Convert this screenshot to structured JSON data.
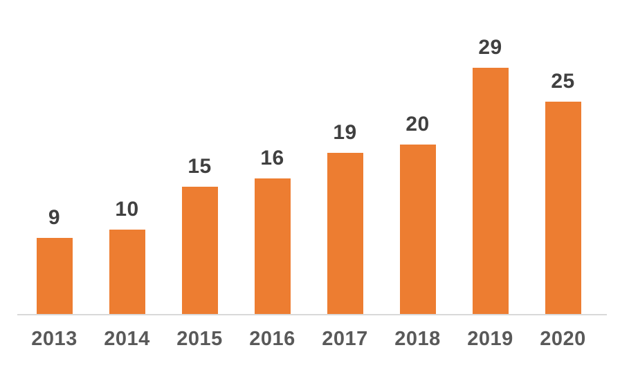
{
  "chart_data": {
    "type": "bar",
    "categories": [
      "2013",
      "2014",
      "2015",
      "2016",
      "2017",
      "2018",
      "2019",
      "2020"
    ],
    "values": [
      9,
      10,
      15,
      16,
      19,
      20,
      29,
      25
    ],
    "title": "",
    "xlabel": "",
    "ylabel": "",
    "ylim": [
      0,
      30
    ],
    "grid": false,
    "legend_position": "none",
    "data_labels_shown": true,
    "bar_color": "#ED7D31",
    "value_label_color": "#404040",
    "axis_label_color": "#595959",
    "axis_line_color": "#D9D9D9",
    "background_color": "#FFFFFF"
  }
}
